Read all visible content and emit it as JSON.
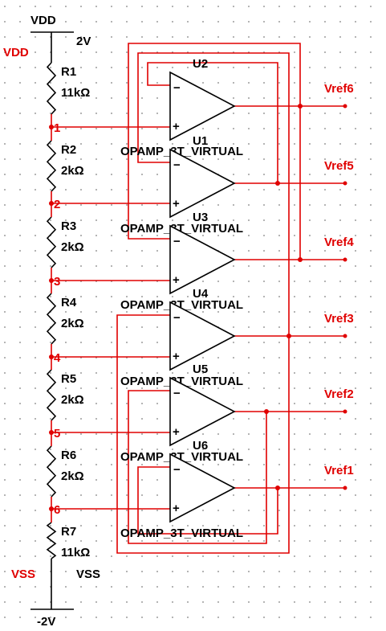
{
  "colors": {
    "wire": "#e00000",
    "component": "#000000",
    "label": "#e00000",
    "grid": "#7f7f7f"
  },
  "supply": {
    "vdd_name": "VDD",
    "vdd_value": "2V",
    "vdd_net": "VDD",
    "vss_name": "VSS",
    "vss_value": "-2V",
    "vss_net": "VSS"
  },
  "resistors": [
    {
      "ref": "R1",
      "value": "11kΩ"
    },
    {
      "ref": "R2",
      "value": "2kΩ"
    },
    {
      "ref": "R3",
      "value": "2kΩ"
    },
    {
      "ref": "R4",
      "value": "2kΩ"
    },
    {
      "ref": "R5",
      "value": "2kΩ"
    },
    {
      "ref": "R6",
      "value": "2kΩ"
    },
    {
      "ref": "R7",
      "value": "11kΩ"
    }
  ],
  "nodes": [
    "1",
    "2",
    "3",
    "4",
    "5",
    "6"
  ],
  "opamps": [
    {
      "ref": "U2",
      "model": "OPAMP_3T_VIRTUAL",
      "output": "Vref6"
    },
    {
      "ref": "U1",
      "model": "OPAMP_3T_VIRTUAL",
      "output": "Vref5"
    },
    {
      "ref": "U3",
      "model": "OPAMP_3T_VIRTUAL",
      "output": "Vref4"
    },
    {
      "ref": "U4",
      "model": "OPAMP_3T_VIRTUAL",
      "output": "Vref3"
    },
    {
      "ref": "U5",
      "model": "OPAMP_3T_VIRTUAL",
      "output": "Vref2"
    },
    {
      "ref": "U6",
      "model": "OPAMP_3T_VIRTUAL",
      "output": "Vref1"
    }
  ],
  "pin_signs": {
    "minus": "−",
    "plus": "+"
  }
}
